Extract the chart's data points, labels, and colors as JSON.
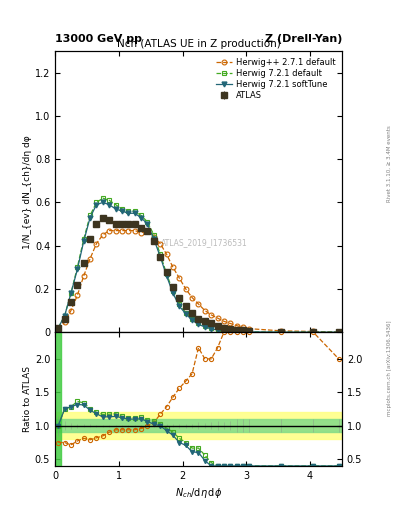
{
  "title_main": "Nch (ATLAS UE in Z production)",
  "header_left": "13000 GeV pp",
  "header_right": "Z (Drell-Yan)",
  "right_label": "Rivet 3.1.10, ≥ 3.4M events",
  "watermark": "ATLAS_2019_I1736531",
  "ylabel_main": "1/N_{ev} dN_{ch}/dη dφ",
  "ylabel_ratio": "Ratio to ATLAS",
  "mcplots_label": "mcplots.cern.ch [arXiv:1306.3436]",
  "atlas_x": [
    0.05,
    0.15,
    0.25,
    0.35,
    0.45,
    0.55,
    0.65,
    0.75,
    0.85,
    0.95,
    1.05,
    1.15,
    1.25,
    1.35,
    1.45,
    1.55,
    1.65,
    1.75,
    1.85,
    1.95,
    2.05,
    2.15,
    2.25,
    2.35,
    2.45,
    2.55,
    2.65,
    2.75,
    2.85,
    2.95,
    3.05,
    3.55,
    4.05,
    4.45
  ],
  "atlas_y": [
    0.02,
    0.06,
    0.14,
    0.22,
    0.32,
    0.43,
    0.5,
    0.53,
    0.52,
    0.5,
    0.5,
    0.5,
    0.5,
    0.48,
    0.47,
    0.42,
    0.35,
    0.28,
    0.21,
    0.16,
    0.12,
    0.09,
    0.06,
    0.05,
    0.04,
    0.03,
    0.02,
    0.015,
    0.01,
    0.008,
    0.005,
    0.002,
    0.001,
    0.0005
  ],
  "atlas_err": [
    0.003,
    0.004,
    0.006,
    0.007,
    0.008,
    0.009,
    0.009,
    0.009,
    0.009,
    0.009,
    0.009,
    0.009,
    0.009,
    0.009,
    0.008,
    0.008,
    0.007,
    0.006,
    0.005,
    0.005,
    0.004,
    0.003,
    0.003,
    0.002,
    0.002,
    0.002,
    0.001,
    0.001,
    0.001,
    0.0008,
    0.0005,
    0.0002,
    0.0001,
    5e-05
  ],
  "hpp271_x": [
    0.05,
    0.15,
    0.25,
    0.35,
    0.45,
    0.55,
    0.65,
    0.75,
    0.85,
    0.95,
    1.05,
    1.15,
    1.25,
    1.35,
    1.45,
    1.55,
    1.65,
    1.75,
    1.85,
    1.95,
    2.05,
    2.15,
    2.25,
    2.35,
    2.45,
    2.55,
    2.65,
    2.75,
    2.85,
    2.95,
    3.05,
    3.55,
    4.05,
    4.45
  ],
  "hpp271_y": [
    0.015,
    0.045,
    0.1,
    0.17,
    0.26,
    0.34,
    0.41,
    0.45,
    0.47,
    0.47,
    0.47,
    0.47,
    0.47,
    0.46,
    0.47,
    0.44,
    0.41,
    0.36,
    0.3,
    0.25,
    0.2,
    0.16,
    0.13,
    0.1,
    0.08,
    0.065,
    0.05,
    0.04,
    0.03,
    0.022,
    0.016,
    0.006,
    0.003,
    0.001
  ],
  "h721_x": [
    0.05,
    0.15,
    0.25,
    0.35,
    0.45,
    0.55,
    0.65,
    0.75,
    0.85,
    0.95,
    1.05,
    1.15,
    1.25,
    1.35,
    1.45,
    1.55,
    1.65,
    1.75,
    1.85,
    1.95,
    2.05,
    2.15,
    2.25,
    2.35,
    2.45,
    2.55,
    2.65,
    2.75,
    2.85,
    2.95,
    3.05,
    3.55,
    4.05,
    4.45
  ],
  "h721_y": [
    0.02,
    0.075,
    0.18,
    0.3,
    0.43,
    0.54,
    0.6,
    0.62,
    0.61,
    0.59,
    0.57,
    0.56,
    0.56,
    0.54,
    0.51,
    0.45,
    0.36,
    0.27,
    0.19,
    0.13,
    0.09,
    0.06,
    0.04,
    0.028,
    0.018,
    0.012,
    0.008,
    0.005,
    0.003,
    0.002,
    0.001,
    0.0003,
    0.0001,
    3e-05
  ],
  "h721st_x": [
    0.05,
    0.15,
    0.25,
    0.35,
    0.45,
    0.55,
    0.65,
    0.75,
    0.85,
    0.95,
    1.05,
    1.15,
    1.25,
    1.35,
    1.45,
    1.55,
    1.65,
    1.75,
    1.85,
    1.95,
    2.05,
    2.15,
    2.25,
    2.35,
    2.45,
    2.55,
    2.65,
    2.75,
    2.85,
    2.95,
    3.05,
    3.55,
    4.05,
    4.45
  ],
  "h721st_y": [
    0.02,
    0.075,
    0.18,
    0.29,
    0.42,
    0.53,
    0.59,
    0.6,
    0.59,
    0.57,
    0.56,
    0.55,
    0.55,
    0.53,
    0.5,
    0.43,
    0.35,
    0.26,
    0.18,
    0.12,
    0.085,
    0.055,
    0.036,
    0.024,
    0.015,
    0.01,
    0.006,
    0.004,
    0.003,
    0.002,
    0.001,
    0.0002,
    5e-05,
    1e-05
  ],
  "atlas_color": "#3d3520",
  "hpp271_color": "#cc6600",
  "h721_color": "#44aa22",
  "h721st_color": "#226677",
  "xlim": [
    0,
    4.5
  ],
  "ylim_main": [
    0,
    1.3
  ],
  "ylim_ratio": [
    0.4,
    2.4
  ],
  "yticks_main": [
    0,
    0.2,
    0.4,
    0.6,
    0.8,
    1.0,
    1.2
  ],
  "yticks_ratio": [
    0.5,
    1.0,
    1.5,
    2.0
  ],
  "xticks": [
    0,
    1,
    2,
    3,
    4
  ]
}
